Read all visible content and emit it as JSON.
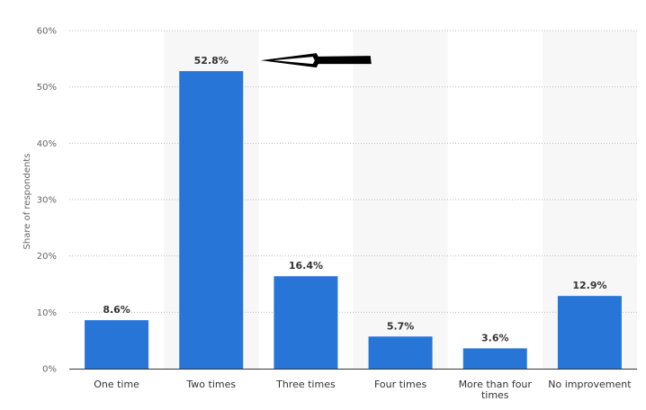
{
  "chart_data": {
    "type": "bar",
    "categories": [
      "One time",
      "Two times",
      "Three times",
      "Four times",
      "More than four times",
      "No improvement"
    ],
    "values": [
      8.6,
      52.8,
      16.4,
      5.7,
      3.6,
      12.9
    ],
    "value_labels": [
      "8.6%",
      "52.8%",
      "16.4%",
      "5.7%",
      "3.6%",
      "12.9%"
    ],
    "title": "",
    "xlabel": "",
    "ylabel": "Share of respondents",
    "ylim": [
      0,
      60
    ],
    "yticks": [
      0,
      10,
      20,
      30,
      40,
      50,
      60
    ],
    "ytick_labels": [
      "0%",
      "10%",
      "20%",
      "30%",
      "40%",
      "50%",
      "60%"
    ],
    "grid": true,
    "bar_color": "#2875d8",
    "annotation": {
      "type": "arrow",
      "points_to": "Two times",
      "color": "#000000"
    }
  }
}
